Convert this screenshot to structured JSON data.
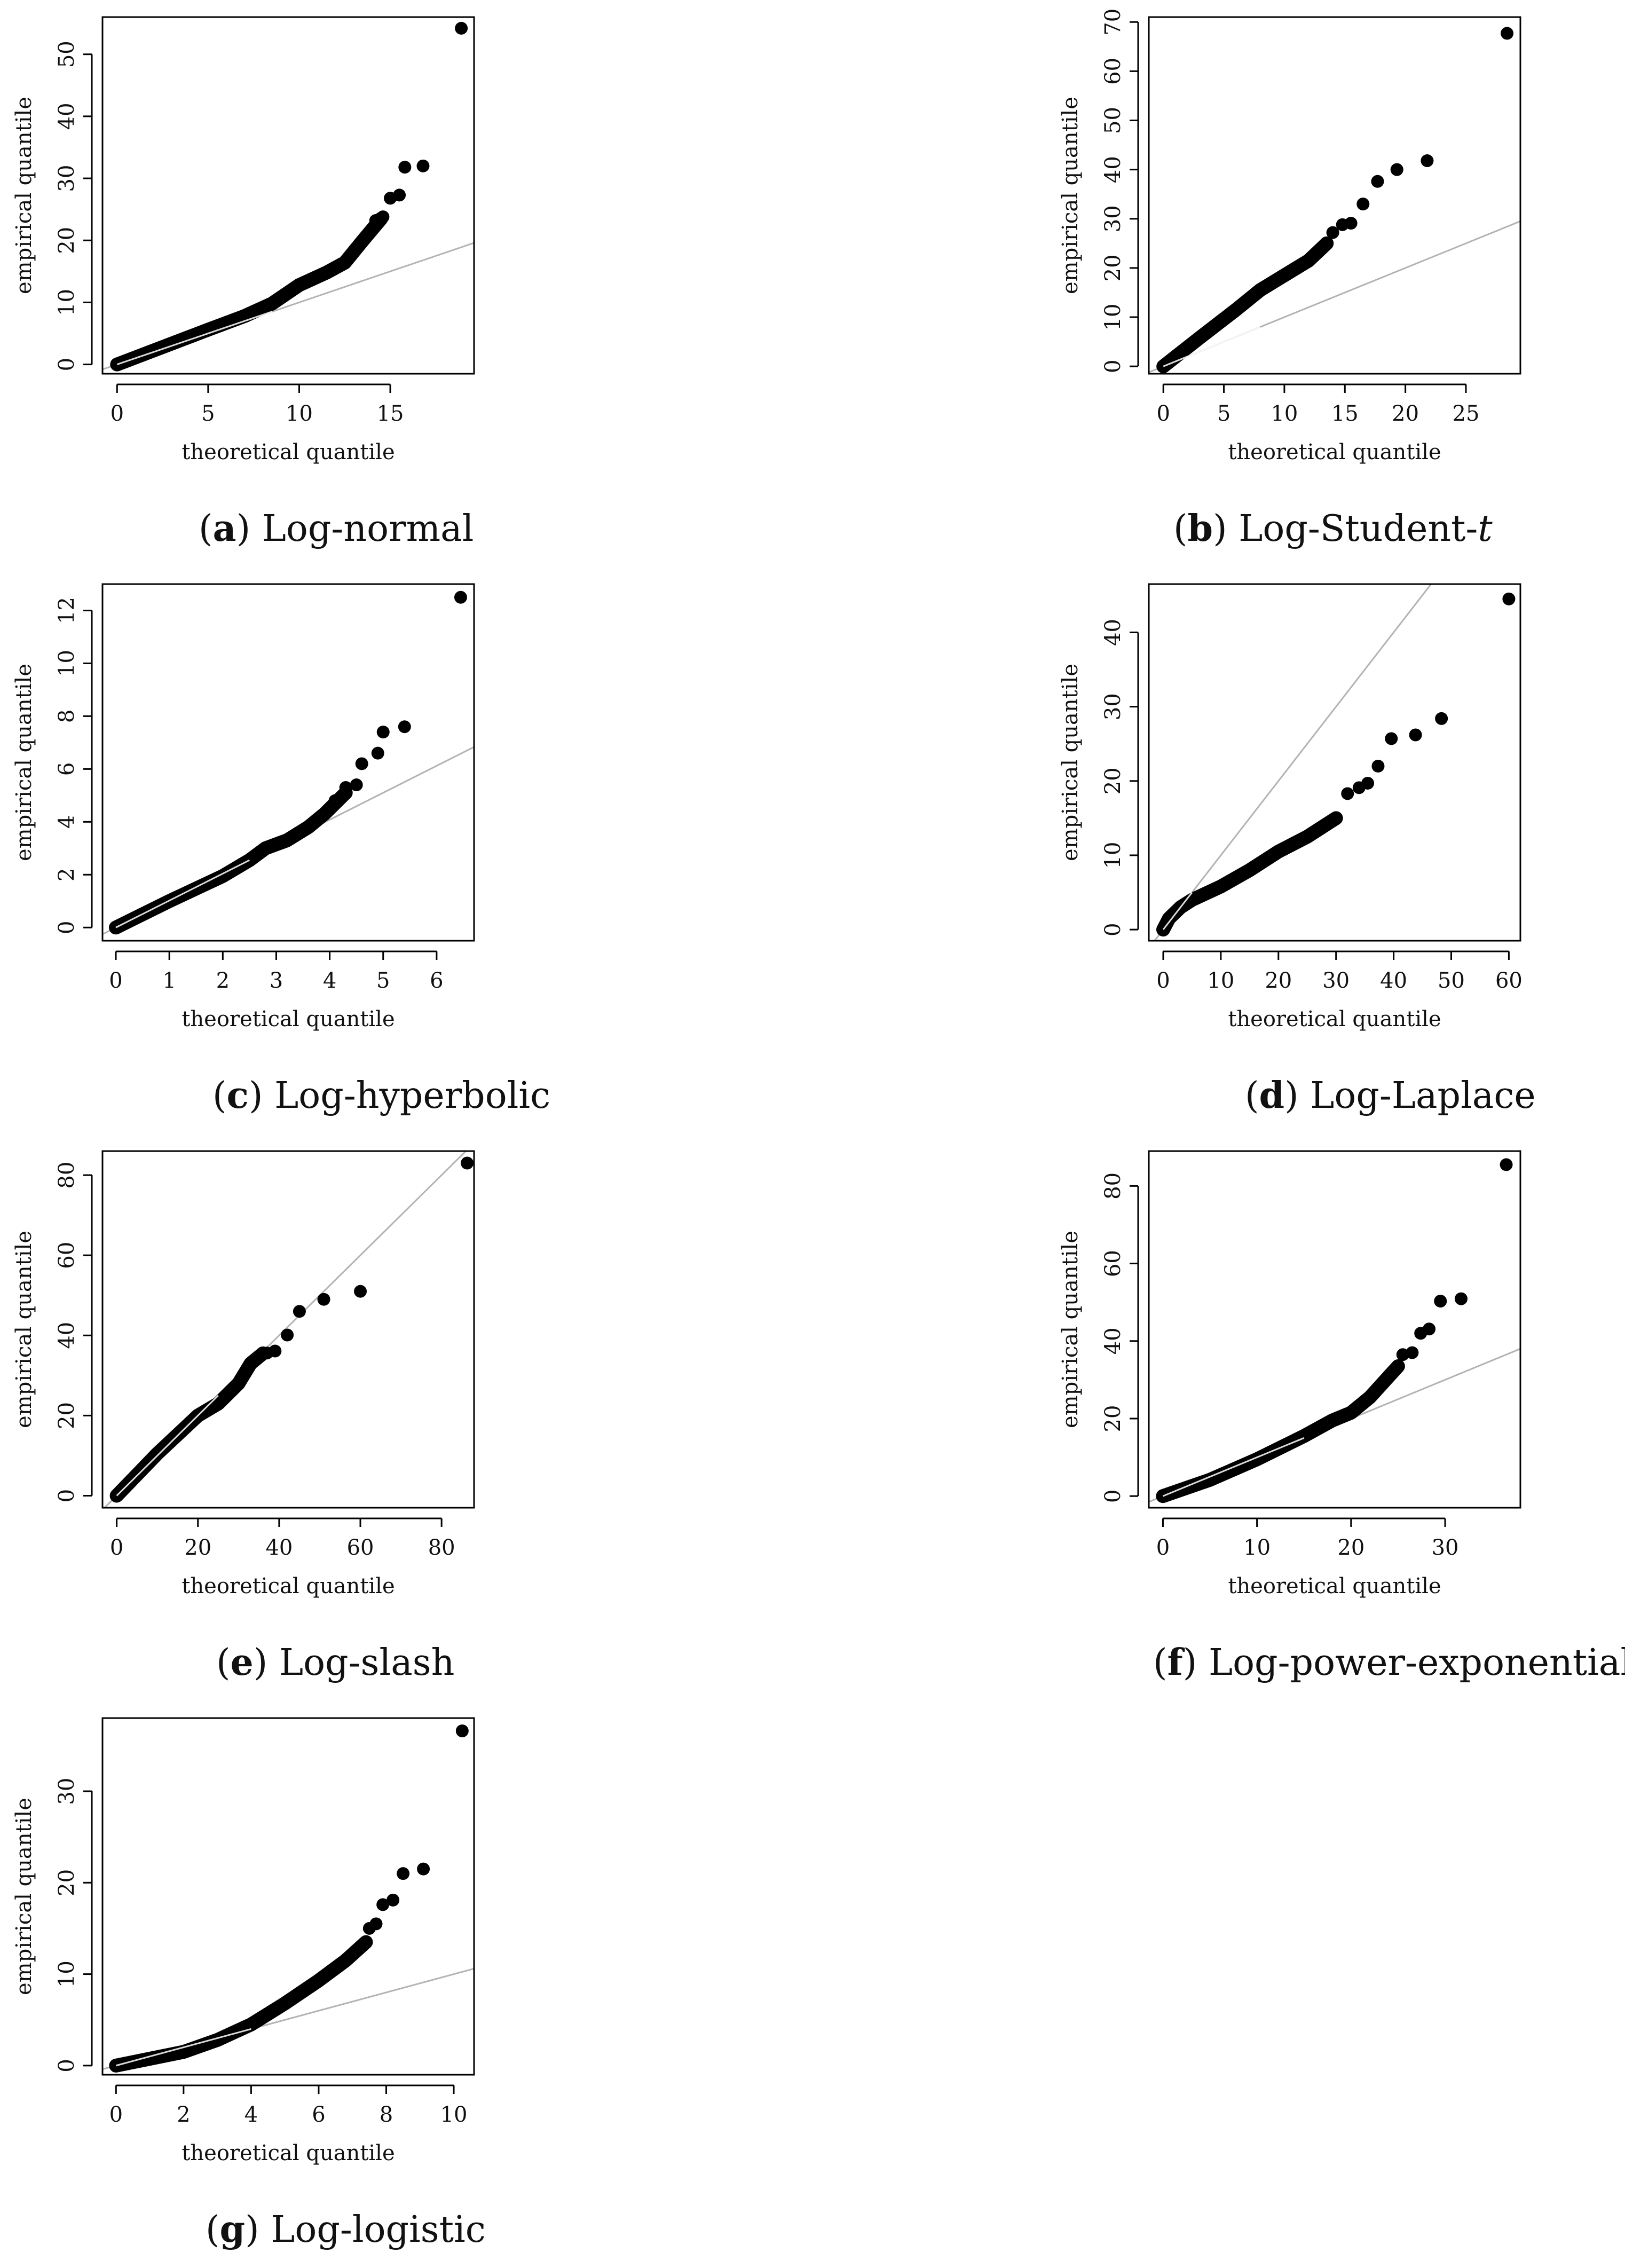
{
  "chart_data": [
    {
      "type": "scatter",
      "id": "a",
      "caption_letter": "a",
      "caption_text": "Log-normal",
      "caption_italic_suffix": "",
      "xlabel": "theoretical quantile",
      "ylabel": "empirical quantile",
      "xlim": [
        -0.8,
        19.6
      ],
      "ylim": [
        -1.5,
        56
      ],
      "xticks": [
        0,
        5,
        10,
        15
      ],
      "yticks": [
        0,
        10,
        20,
        30,
        40,
        50
      ],
      "reference_line": {
        "slope": 1,
        "intercept": 0
      },
      "curve": [
        [
          0,
          0
        ],
        [
          5,
          5.6
        ],
        [
          7,
          7.8
        ],
        [
          8.5,
          9.8
        ],
        [
          10,
          12.8
        ],
        [
          11.5,
          14.8
        ],
        [
          12.5,
          16.4
        ],
        [
          13.5,
          20
        ],
        [
          14.5,
          23.5
        ]
      ],
      "points": [
        [
          14.2,
          23.2
        ],
        [
          14.6,
          23.8
        ],
        [
          15,
          26.8
        ],
        [
          15.5,
          27.3
        ],
        [
          15.8,
          31.8
        ],
        [
          16.8,
          32
        ],
        [
          18.9,
          54.2
        ]
      ]
    },
    {
      "type": "scatter",
      "id": "b",
      "caption_letter": "b",
      "caption_text": "Log-Student-",
      "caption_italic_suffix": "t",
      "xlabel": "theoretical quantile",
      "ylabel": "empirical quantile",
      "xlim": [
        -1.2,
        29.5
      ],
      "ylim": [
        -1.5,
        71
      ],
      "xticks": [
        0,
        5,
        10,
        15,
        20,
        25
      ],
      "yticks": [
        0,
        10,
        20,
        30,
        40,
        50,
        60,
        70
      ],
      "reference_line": {
        "slope": 1,
        "intercept": 0
      },
      "curve": [
        [
          0,
          0
        ],
        [
          3,
          5.8
        ],
        [
          6,
          11.5
        ],
        [
          8,
          15.5
        ],
        [
          10,
          18.5
        ],
        [
          12,
          21.5
        ],
        [
          13.5,
          25
        ]
      ],
      "points": [
        [
          14,
          27.2
        ],
        [
          14.8,
          28.8
        ],
        [
          15.5,
          29.1
        ],
        [
          16.5,
          33
        ],
        [
          17.7,
          37.6
        ],
        [
          19.3,
          40
        ],
        [
          21.8,
          41.8
        ],
        [
          28.4,
          67.7
        ]
      ]
    },
    {
      "type": "scatter",
      "id": "c",
      "caption_letter": "c",
      "caption_text": "Log-hyperbolic",
      "caption_italic_suffix": "",
      "xlabel": "theoretical quantile",
      "ylabel": "empirical quantile",
      "xlim": [
        -0.25,
        6.7
      ],
      "ylim": [
        -0.5,
        13
      ],
      "xticks": [
        0,
        1,
        2,
        3,
        4,
        5,
        6
      ],
      "yticks": [
        0,
        2,
        4,
        6,
        8,
        10,
        12
      ],
      "reference_line": {
        "slope": 1.02,
        "intercept": 0
      },
      "curve": [
        [
          0,
          0
        ],
        [
          1,
          1
        ],
        [
          2,
          1.95
        ],
        [
          2.5,
          2.55
        ],
        [
          2.8,
          3
        ],
        [
          3.2,
          3.3
        ],
        [
          3.6,
          3.8
        ],
        [
          3.9,
          4.3
        ],
        [
          4.3,
          5.1
        ]
      ],
      "points": [
        [
          4.1,
          4.8
        ],
        [
          4.3,
          5.3
        ],
        [
          4.5,
          5.4
        ],
        [
          4.6,
          6.2
        ],
        [
          4.9,
          6.6
        ],
        [
          5,
          7.4
        ],
        [
          5.4,
          7.6
        ],
        [
          6.45,
          12.5
        ]
      ]
    },
    {
      "type": "scatter",
      "id": "d",
      "caption_letter": "d",
      "caption_text": "Log-Laplace",
      "caption_italic_suffix": "",
      "xlabel": "theoretical quantile",
      "ylabel": "empirical quantile",
      "xlim": [
        -2.5,
        62
      ],
      "ylim": [
        -1.5,
        46.5
      ],
      "xticks": [
        0,
        10,
        20,
        30,
        40,
        50,
        60
      ],
      "yticks": [
        0,
        10,
        20,
        30,
        40
      ],
      "reference_line": {
        "slope": 1,
        "intercept": 0
      },
      "curve": [
        [
          0,
          0
        ],
        [
          1,
          1.5
        ],
        [
          3,
          3
        ],
        [
          5,
          4
        ],
        [
          10,
          5.8
        ],
        [
          15,
          8
        ],
        [
          20,
          10.5
        ],
        [
          25,
          12.5
        ],
        [
          30,
          15
        ]
      ],
      "points": [
        [
          32,
          18.3
        ],
        [
          34,
          19.1
        ],
        [
          35.5,
          19.7
        ],
        [
          37.3,
          22
        ],
        [
          39.6,
          25.7
        ],
        [
          43.8,
          26.2
        ],
        [
          48.3,
          28.4
        ],
        [
          60,
          44.5
        ]
      ]
    },
    {
      "type": "scatter",
      "id": "e",
      "caption_letter": "e",
      "caption_text": "Log-slash",
      "caption_italic_suffix": "",
      "xlabel": "theoretical quantile",
      "ylabel": "empirical quantile",
      "xlim": [
        -3.5,
        88
      ],
      "ylim": [
        -3,
        86
      ],
      "xticks": [
        0,
        20,
        40,
        60,
        80
      ],
      "yticks": [
        0,
        20,
        40,
        60,
        80
      ],
      "reference_line": {
        "slope": 1,
        "intercept": 0
      },
      "curve": [
        [
          0,
          0
        ],
        [
          10,
          10.5
        ],
        [
          20,
          20
        ],
        [
          25,
          23
        ],
        [
          30,
          28
        ],
        [
          33,
          33
        ],
        [
          36,
          35.5
        ]
      ],
      "points": [
        [
          37,
          35.6
        ],
        [
          39,
          36.1
        ],
        [
          42,
          40.1
        ],
        [
          45,
          46
        ],
        [
          51,
          49
        ],
        [
          60,
          51
        ],
        [
          86.3,
          83
        ]
      ]
    },
    {
      "type": "scatter",
      "id": "f",
      "caption_letter": "f",
      "caption_text": "Log-power-exponential",
      "caption_italic_suffix": "",
      "xlabel": "theoretical quantile",
      "ylabel": "empirical quantile",
      "xlim": [
        -1.5,
        38
      ],
      "ylim": [
        -3,
        89
      ],
      "xticks": [
        0,
        10,
        20,
        30
      ],
      "yticks": [
        0,
        20,
        40,
        60,
        80
      ],
      "reference_line": {
        "slope": 1,
        "intercept": 0
      },
      "curve": [
        [
          0,
          0
        ],
        [
          5,
          4.2
        ],
        [
          10,
          9.5
        ],
        [
          15,
          15.5
        ],
        [
          18,
          19.5
        ],
        [
          20,
          21.5
        ],
        [
          22,
          25.5
        ],
        [
          23.5,
          29.5
        ],
        [
          25,
          33.5
        ]
      ],
      "points": [
        [
          25.5,
          36.5
        ],
        [
          26.5,
          37
        ],
        [
          27.4,
          42
        ],
        [
          28.3,
          43.1
        ],
        [
          29.5,
          50.3
        ],
        [
          31.7,
          50.9
        ],
        [
          36.5,
          85.5
        ]
      ]
    },
    {
      "type": "scatter",
      "id": "g",
      "caption_letter": "g",
      "caption_text": "Log-logistic",
      "caption_italic_suffix": "",
      "xlabel": "theoretical quantile",
      "ylabel": "empirical quantile",
      "xlim": [
        -0.4,
        10.6
      ],
      "ylim": [
        -1,
        38
      ],
      "xticks": [
        0,
        2,
        4,
        6,
        8,
        10
      ],
      "yticks": [
        0,
        10,
        20,
        30
      ],
      "reference_line": {
        "slope": 1,
        "intercept": 0
      },
      "curve": [
        [
          0,
          0
        ],
        [
          2,
          1.5
        ],
        [
          3,
          2.8
        ],
        [
          4,
          4.5
        ],
        [
          5,
          6.8
        ],
        [
          6,
          9.3
        ],
        [
          6.8,
          11.5
        ],
        [
          7.4,
          13.5
        ]
      ],
      "points": [
        [
          7.5,
          15
        ],
        [
          7.7,
          15.5
        ],
        [
          7.9,
          17.6
        ],
        [
          8.2,
          18.1
        ],
        [
          8.5,
          21
        ],
        [
          9.1,
          21.5
        ],
        [
          10.25,
          36.6
        ]
      ]
    }
  ]
}
